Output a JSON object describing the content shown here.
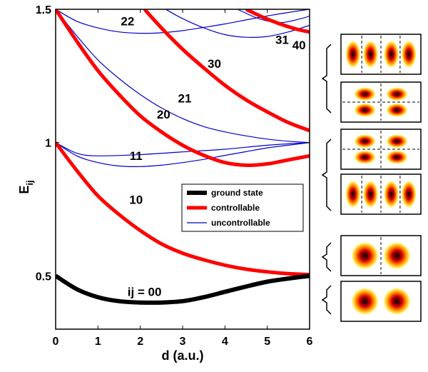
{
  "chart_data": {
    "type": "line",
    "xlabel": "d (a.u.)",
    "ylabel": "E",
    "ylabel_subscript": "ij",
    "xlim": [
      0,
      6
    ],
    "ylim": [
      0.3,
      1.5
    ],
    "x_ticks": [
      "0",
      "1",
      "2",
      "3",
      "4",
      "5",
      "6"
    ],
    "y_ticks": [
      {
        "value": 0.5,
        "label": "0.5"
      },
      {
        "value": 1.0,
        "label": "1"
      },
      {
        "value": 1.5,
        "label": "1.5"
      }
    ],
    "grid": false,
    "legend_position": "center-right",
    "legend": [
      {
        "label": "ground state",
        "style": "ground"
      },
      {
        "label": "controllable",
        "style": "controllable"
      },
      {
        "label": "uncontrollable",
        "style": "uncontrollable"
      }
    ],
    "styles": {
      "ground": {
        "color": "#000000",
        "width": 6
      },
      "controllable": {
        "color": "#ff0000",
        "width": 5
      },
      "uncontrollable": {
        "color": "#0000cc",
        "width": 1.2
      }
    },
    "series": [
      {
        "name": "ij = 00",
        "style": "ground",
        "label_at": [
          2.1,
          0.43
        ],
        "points": [
          [
            0,
            0.5
          ],
          [
            0.5,
            0.45
          ],
          [
            1,
            0.42
          ],
          [
            1.5,
            0.405
          ],
          [
            2,
            0.4
          ],
          [
            2.5,
            0.4
          ],
          [
            3,
            0.405
          ],
          [
            3.5,
            0.42
          ],
          [
            4,
            0.44
          ],
          [
            4.5,
            0.46
          ],
          [
            5,
            0.478
          ],
          [
            5.5,
            0.49
          ],
          [
            6,
            0.5
          ]
        ]
      },
      {
        "name": "10",
        "style": "controllable",
        "label_at": [
          1.9,
          0.77
        ],
        "points": [
          [
            0,
            1.0
          ],
          [
            0.5,
            0.895
          ],
          [
            1,
            0.8
          ],
          [
            1.5,
            0.73
          ],
          [
            2,
            0.67
          ],
          [
            2.5,
            0.62
          ],
          [
            3,
            0.585
          ],
          [
            3.5,
            0.56
          ],
          [
            4,
            0.54
          ],
          [
            4.5,
            0.525
          ],
          [
            5,
            0.515
          ],
          [
            5.5,
            0.508
          ],
          [
            6,
            0.505
          ]
        ]
      },
      {
        "name": "11",
        "style": "uncontrollable",
        "label_at": [
          1.9,
          0.935
        ],
        "points": [
          [
            0,
            1.0
          ],
          [
            0.5,
            0.95
          ],
          [
            1,
            0.925
          ],
          [
            1.5,
            0.912
          ],
          [
            2,
            0.91
          ],
          [
            2.5,
            0.915
          ],
          [
            3,
            0.925
          ],
          [
            3.5,
            0.937
          ],
          [
            4,
            0.952
          ],
          [
            4.5,
            0.966
          ],
          [
            5,
            0.98
          ],
          [
            5.5,
            0.99
          ],
          [
            6,
            1.0
          ]
        ]
      },
      {
        "name": "20",
        "style": "controllable",
        "label_at": [
          2.6,
          1.085
        ],
        "points": [
          [
            0,
            1.5
          ],
          [
            0.5,
            1.38
          ],
          [
            1,
            1.27
          ],
          [
            1.5,
            1.18
          ],
          [
            2,
            1.1
          ],
          [
            2.5,
            1.04
          ],
          [
            3,
            0.99
          ],
          [
            3.5,
            0.952
          ],
          [
            4,
            0.925
          ],
          [
            4.5,
            0.915
          ],
          [
            5,
            0.92
          ],
          [
            5.5,
            0.935
          ],
          [
            6,
            0.95
          ]
        ]
      },
      {
        "name": "21",
        "style": "uncontrollable",
        "label_at": [
          3.0,
          1.15
        ],
        "points": [
          [
            0,
            1.5
          ],
          [
            0.5,
            1.4
          ],
          [
            1,
            1.31
          ],
          [
            1.5,
            1.24
          ],
          [
            2,
            1.18
          ],
          [
            2.5,
            1.13
          ],
          [
            3,
            1.09
          ],
          [
            3.5,
            1.06
          ],
          [
            4,
            1.04
          ],
          [
            4.5,
            1.025
          ],
          [
            5,
            1.013
          ],
          [
            5.5,
            1.005
          ],
          [
            6,
            1.0
          ]
        ]
      },
      {
        "name": "10-dup",
        "style": "uncontrollable",
        "label_at": null,
        "points": [
          [
            0,
            1.0
          ],
          [
            0.5,
            0.96
          ],
          [
            1,
            0.95
          ],
          [
            2,
            0.955
          ],
          [
            3,
            0.965
          ],
          [
            4,
            0.975
          ],
          [
            5,
            0.99
          ],
          [
            6,
            1.0
          ]
        ]
      },
      {
        "name": "22",
        "style": "uncontrollable",
        "label_at": [
          1.7,
          1.43
        ],
        "points": [
          [
            0,
            1.5
          ],
          [
            0.5,
            1.455
          ],
          [
            1,
            1.43
          ],
          [
            1.5,
            1.415
          ],
          [
            2,
            1.41
          ],
          [
            2.5,
            1.412
          ],
          [
            3,
            1.42
          ],
          [
            3.5,
            1.432
          ],
          [
            4,
            1.445
          ],
          [
            4.5,
            1.46
          ],
          [
            5,
            1.475
          ],
          [
            5.5,
            1.488
          ],
          [
            6,
            1.5
          ]
        ]
      },
      {
        "name": "30",
        "style": "controllable",
        "label_at": [
          3.8,
          1.27
        ],
        "points": [
          [
            2.1,
            1.5
          ],
          [
            2.5,
            1.43
          ],
          [
            3,
            1.35
          ],
          [
            3.5,
            1.28
          ],
          [
            4,
            1.215
          ],
          [
            4.5,
            1.16
          ],
          [
            5,
            1.115
          ],
          [
            5.5,
            1.075
          ],
          [
            6,
            1.045
          ]
        ]
      },
      {
        "name": "31",
        "style": "uncontrollable",
        "label_at": [
          5.4,
          1.375
        ],
        "points": [
          [
            2.6,
            1.5
          ],
          [
            3,
            1.465
          ],
          [
            3.5,
            1.43
          ],
          [
            4,
            1.405
          ],
          [
            4.5,
            1.395
          ],
          [
            5,
            1.398
          ],
          [
            5.5,
            1.415
          ],
          [
            6,
            1.44
          ]
        ]
      },
      {
        "name": "31b",
        "style": "uncontrollable",
        "label_at": null,
        "points": [
          [
            4.3,
            1.5
          ],
          [
            4.8,
            1.465
          ],
          [
            5.3,
            1.45
          ],
          [
            5.8,
            1.465
          ],
          [
            6,
            1.475
          ]
        ]
      },
      {
        "name": "40",
        "style": "controllable",
        "label_at": [
          5.75,
          1.35
        ],
        "points": [
          [
            4.5,
            1.5
          ],
          [
            4.9,
            1.47
          ],
          [
            5.3,
            1.445
          ],
          [
            5.7,
            1.425
          ],
          [
            6,
            1.415
          ]
        ]
      }
    ],
    "labels": [
      {
        "text": "ij = 00",
        "x": 2.1,
        "y": 0.425
      },
      {
        "text": "10",
        "x": 1.9,
        "y": 0.77
      },
      {
        "text": "11",
        "x": 1.9,
        "y": 0.935
      },
      {
        "text": "20",
        "x": 2.55,
        "y": 1.09
      },
      {
        "text": "21",
        "x": 3.05,
        "y": 1.15
      },
      {
        "text": "22",
        "x": 1.7,
        "y": 1.44
      },
      {
        "text": "30",
        "x": 3.75,
        "y": 1.28
      },
      {
        "text": "31",
        "x": 5.35,
        "y": 1.37
      },
      {
        "text": "40",
        "x": 5.75,
        "y": 1.35
      }
    ],
    "panels": [
      {
        "blobs": 4,
        "vlines": 3,
        "hline": false
      },
      {
        "blobs": 4,
        "vlines": 1,
        "hline": true,
        "rows": 2
      },
      {
        "blobs": 4,
        "vlines": 1,
        "hline": true,
        "rows": 2
      },
      {
        "blobs": 4,
        "vlines": 3,
        "hline": false
      },
      {
        "blobs": 2,
        "vlines": 1,
        "hline": false
      },
      {
        "blobs": 2,
        "vlines": 0,
        "hline": false
      }
    ]
  }
}
